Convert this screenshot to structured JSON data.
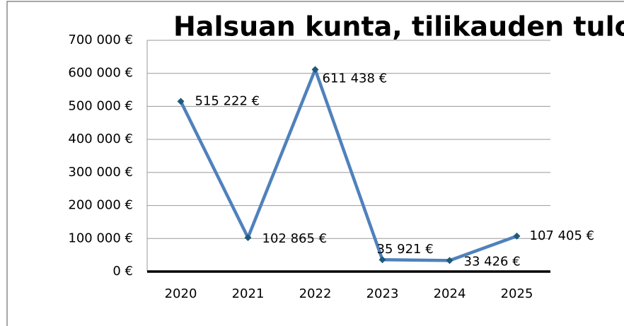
{
  "chart_data": {
    "type": "line",
    "title": "Halsuan kunta, tilikauden tulos",
    "categories": [
      "2020",
      "2021",
      "2022",
      "2023",
      "2024",
      "2025"
    ],
    "series": [
      {
        "name": "Tilikauden tulos",
        "color": "#4f81bd",
        "marker_color": "#1f5a7a",
        "values": [
          515222,
          102865,
          611438,
          35921,
          33426,
          107405
        ],
        "value_labels": [
          "515 222 €",
          "102 865 €",
          "611 438 €",
          "35 921 €",
          "33 426 €",
          "107 405 €"
        ]
      }
    ],
    "ylim": [
      0,
      700000
    ],
    "yticks": [
      {
        "value": 0,
        "label": "0 €"
      },
      {
        "value": 100000,
        "label": "100 000 €"
      },
      {
        "value": 200000,
        "label": "200 000 €"
      },
      {
        "value": 300000,
        "label": "300 000 €"
      },
      {
        "value": 400000,
        "label": "400 000 €"
      },
      {
        "value": 500000,
        "label": "500 000 €"
      },
      {
        "value": 600000,
        "label": "600 000 €"
      },
      {
        "value": 700000,
        "label": "700 000 €"
      }
    ],
    "grid": true
  }
}
